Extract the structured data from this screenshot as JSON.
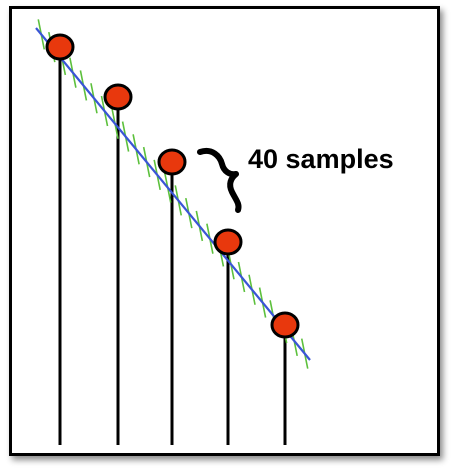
{
  "annotation": {
    "label": "40 samples"
  },
  "colors": {
    "sample_fill": "#e8380d",
    "sample_stroke": "#000000",
    "stem": "#000000",
    "line": "#3a55d6",
    "ticks": "#5cc03c",
    "frame": "#000000"
  },
  "samples": [
    {
      "index": 1
    },
    {
      "index": 2
    },
    {
      "index": 3
    },
    {
      "index": 4
    },
    {
      "index": 5
    }
  ]
}
